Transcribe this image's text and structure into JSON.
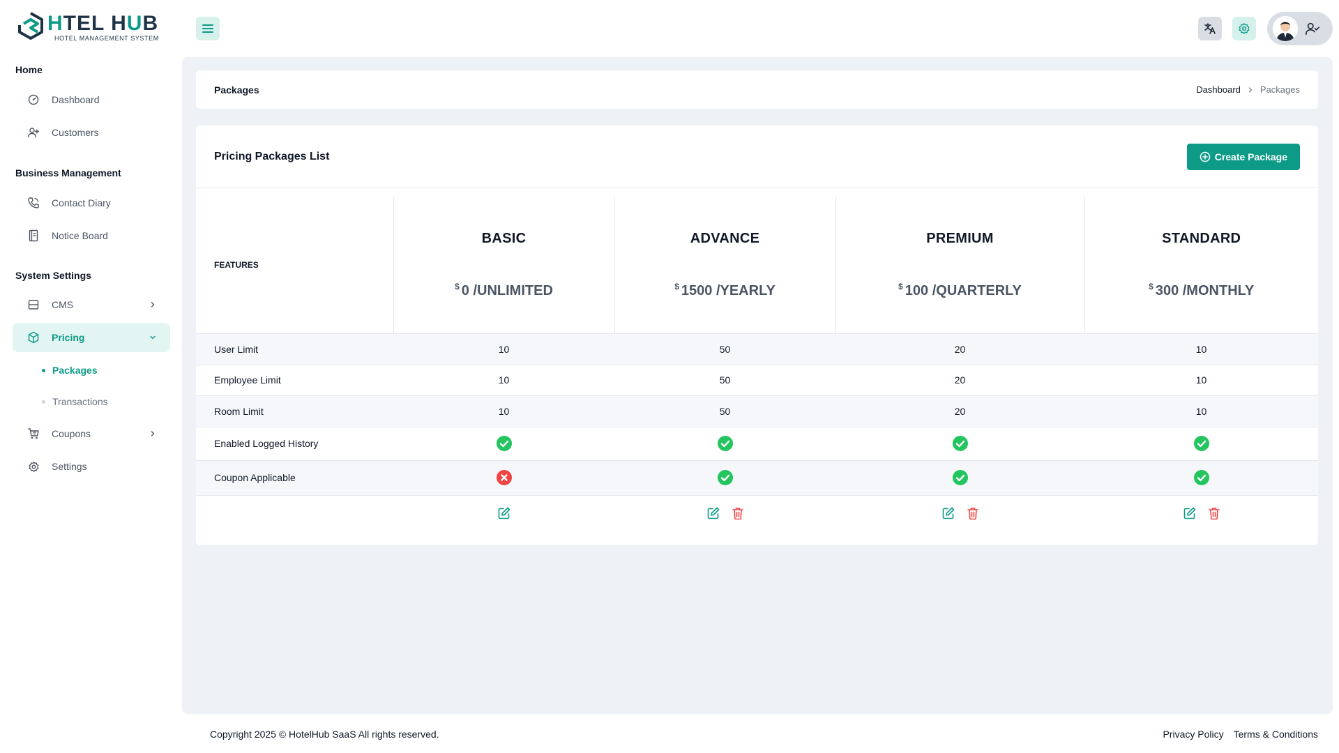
{
  "brand": {
    "name_left": "H",
    "name_rest": "TEL H",
    "name_end": "B",
    "name_mid_u": "U",
    "tagline": "HOTEL MANAGEMENT SYSTEM",
    "primary_color": "#0d9b87",
    "dark_color": "#1f3347"
  },
  "header": {
    "menu_icon": "hamburger-icon",
    "translate_icon": "translate-icon",
    "settings_icon": "gear-icon",
    "profile_icon": "user-check-icon"
  },
  "sidebar": {
    "sections": {
      "home": "Home",
      "business": "Business Management",
      "system": "System Settings"
    },
    "items": {
      "dashboard": "Dashboard",
      "customers": "Customers",
      "contact_diary": "Contact Diary",
      "notice_board": "Notice Board",
      "cms": "CMS",
      "pricing": "Pricing",
      "packages": "Packages",
      "transactions": "Transactions",
      "coupons": "Coupons",
      "settings": "Settings"
    }
  },
  "breadcrumb": {
    "title": "Packages",
    "home": "Dashboard",
    "current": "Packages"
  },
  "packages_card": {
    "title": "Pricing Packages List",
    "create_label": "Create Package",
    "features_label": "FEATURES",
    "currency": "$",
    "plans": [
      {
        "name": "BASIC",
        "price": "0 /UNLIMITED"
      },
      {
        "name": "ADVANCE",
        "price": "1500 /YEARLY"
      },
      {
        "name": "PREMIUM",
        "price": "100 /QUARTERLY"
      },
      {
        "name": "STANDARD",
        "price": "300 /MONTHLY"
      }
    ],
    "rows": [
      {
        "label": "User Limit",
        "values": [
          "10",
          "50",
          "20",
          "10"
        ]
      },
      {
        "label": "Employee Limit",
        "values": [
          "10",
          "50",
          "20",
          "10"
        ]
      },
      {
        "label": "Room Limit",
        "values": [
          "10",
          "50",
          "20",
          "10"
        ]
      },
      {
        "label": "Enabled Logged History",
        "values": [
          true,
          true,
          true,
          true
        ]
      },
      {
        "label": "Coupon Applicable",
        "values": [
          false,
          true,
          true,
          true
        ]
      }
    ],
    "status_colors": {
      "yes": "#22c55e",
      "no": "#ef4444"
    },
    "actions": [
      {
        "edit": true,
        "delete": false
      },
      {
        "edit": true,
        "delete": true
      },
      {
        "edit": true,
        "delete": true
      },
      {
        "edit": true,
        "delete": true
      }
    ]
  },
  "footer": {
    "copyright": "Copyright 2025 © HotelHub SaaS All rights reserved.",
    "privacy": "Privacy Policy",
    "terms": "Terms & Conditions"
  }
}
